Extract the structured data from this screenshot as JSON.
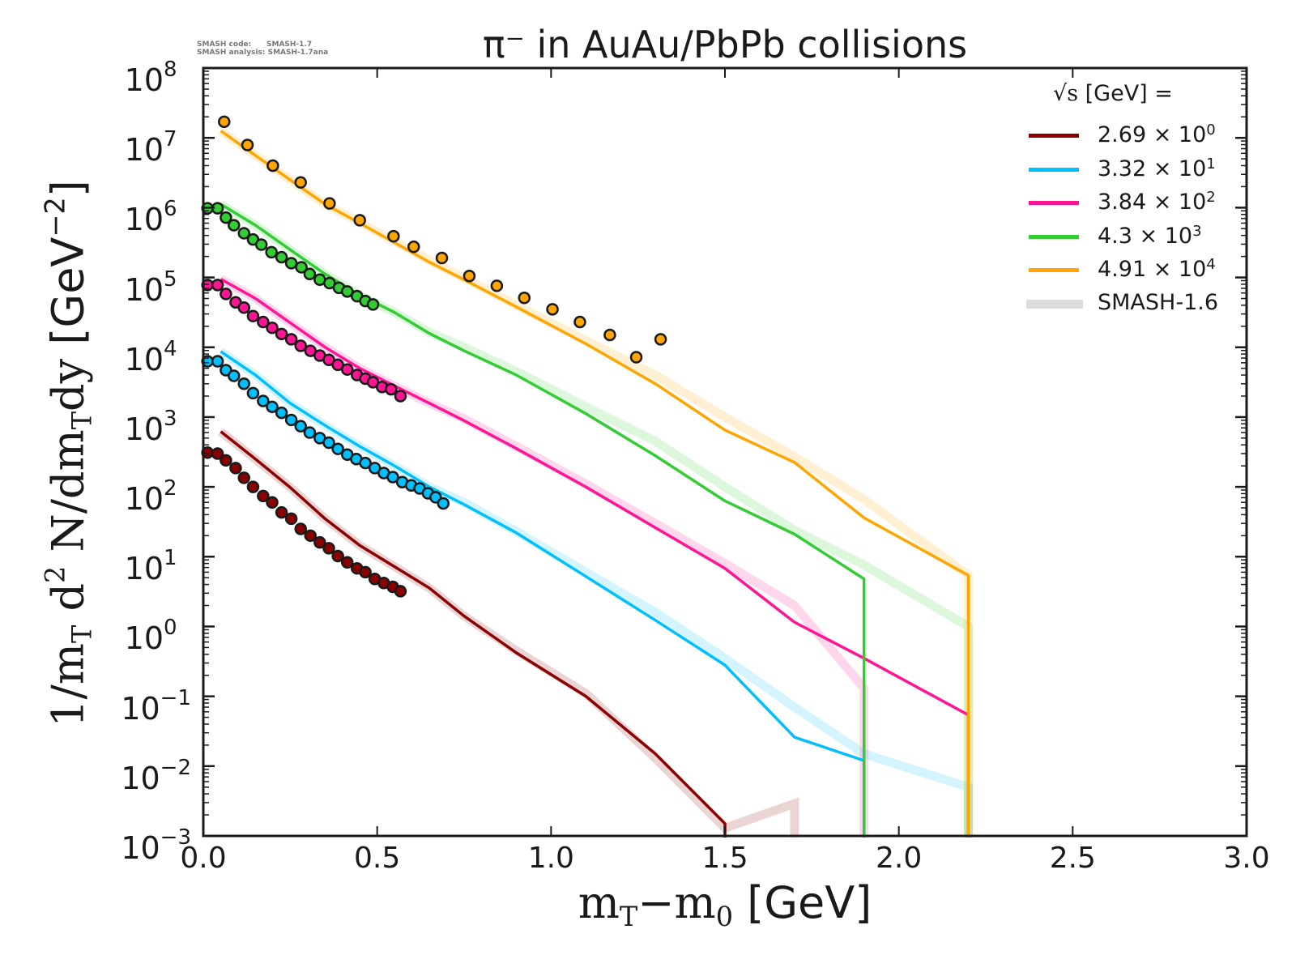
{
  "watermark": {
    "line1": "SMASH code:      SMASH-1.7",
    "line2": "SMASH analysis: SMASH-1.7ana"
  },
  "chart_data": {
    "type": "line",
    "title": "π⁻ in AuAu/PbPb collisions",
    "xlabel": {
      "m": "m",
      "t": "T",
      "minus": "−m",
      "zero": "0",
      "unit": " [GeV]"
    },
    "ylabel": {
      "pre": "1/m",
      "t": "T",
      "d": " d",
      "two": "2",
      "mid": " N/dm",
      "t2": "T",
      "dy": "dy",
      "unit": " [GeV",
      "exp": "−2",
      "close": "]"
    },
    "xlim": [
      0.0,
      3.0
    ],
    "ylim": [
      0.001,
      100000000
    ],
    "yscale": "log",
    "grid": false,
    "legend_position": "top-right",
    "x_tick_labels": [
      "0.0",
      "0.5",
      "1.0",
      "1.5",
      "2.0",
      "2.5",
      "3.0"
    ],
    "y_tick_labels": [
      {
        "base": "10",
        "exp": "8"
      },
      {
        "base": "10",
        "exp": "7"
      },
      {
        "base": "10",
        "exp": "6"
      },
      {
        "base": "10",
        "exp": "5"
      },
      {
        "base": "10",
        "exp": "4"
      },
      {
        "base": "10",
        "exp": "3"
      },
      {
        "base": "10",
        "exp": "2"
      },
      {
        "base": "10",
        "exp": "1"
      },
      {
        "base": "10",
        "exp": "0"
      },
      {
        "base": "10",
        "exp": "−1"
      },
      {
        "base": "10",
        "exp": "−2"
      },
      {
        "base": "10",
        "exp": "−3"
      }
    ],
    "legend": {
      "header_sqrt": "√s",
      "header_rest": " [GeV] =",
      "reference_label": "SMASH-1.6",
      "reference_color": "#dddddd"
    },
    "model_x": [
      0.05,
      0.15,
      0.25,
      0.35,
      0.45,
      0.55,
      0.65,
      0.75,
      0.9,
      1.1,
      1.3,
      1.5,
      1.7,
      1.9,
      2.2
    ],
    "series": [
      {
        "name_mantissa": "2.69",
        "name_exp": "0",
        "color": "#8b0000",
        "model": [
          620,
          250,
          98,
          35,
          14.5,
          7.2,
          3.55,
          1.41,
          0.42,
          0.1,
          0.015,
          0.0015
        ],
        "smash_1_6": [
          620,
          250,
          98,
          35,
          14.5,
          7.2,
          3.55,
          1.41,
          0.45,
          0.11,
          0.013,
          0.0013,
          0.0029
        ],
        "data_x": [
          0.012,
          0.041,
          0.065,
          0.093,
          0.117,
          0.143,
          0.172,
          0.198,
          0.225,
          0.253,
          0.28,
          0.308,
          0.335,
          0.361,
          0.387,
          0.414,
          0.442,
          0.466,
          0.493,
          0.519,
          0.545,
          0.567
        ],
        "data_y": [
          310,
          300,
          240,
          186,
          135,
          100,
          74,
          60,
          43,
          35,
          25,
          20,
          16,
          13.2,
          10.2,
          8.3,
          6.8,
          6.0,
          4.8,
          4.2,
          3.7,
          3.2
        ]
      },
      {
        "name_mantissa": "3.32",
        "name_exp": "1",
        "color": "#00bfff",
        "model": [
          8700,
          4000,
          1580,
          760,
          380,
          200,
          100,
          56,
          22,
          5.2,
          1.23,
          0.28,
          0.026,
          0.012
        ],
        "smash_1_6": [
          8700,
          4000,
          1580,
          760,
          380,
          200,
          100,
          60,
          23,
          6.0,
          1.6,
          0.35,
          0.07,
          0.015,
          0.005
        ],
        "data_x": [
          0.012,
          0.041,
          0.065,
          0.088,
          0.117,
          0.143,
          0.172,
          0.198,
          0.225,
          0.253,
          0.28,
          0.306,
          0.335,
          0.361,
          0.387,
          0.414,
          0.44,
          0.466,
          0.493,
          0.519,
          0.545,
          0.572,
          0.598,
          0.622,
          0.646,
          0.668,
          0.69
        ],
        "data_y": [
          6300,
          6300,
          4700,
          3900,
          3000,
          2200,
          1700,
          1400,
          1150,
          910,
          740,
          600,
          500,
          430,
          350,
          290,
          250,
          220,
          186,
          158,
          138,
          117,
          105,
          95,
          81,
          71,
          58
        ]
      },
      {
        "name_mantissa": "3.84",
        "name_exp": "2",
        "color": "#ff1493",
        "model": [
          95000,
          50000,
          22400,
          10000,
          5000,
          2800,
          1580,
          890,
          355,
          100,
          26,
          6.8,
          1.15,
          0.35,
          0.054
        ],
        "smash_1_6": [
          95000,
          50000,
          22400,
          10000,
          5000,
          2800,
          1580,
          950,
          380,
          110,
          30,
          8.0,
          2.0,
          0.13
        ],
        "data_x": [
          0.012,
          0.041,
          0.065,
          0.093,
          0.117,
          0.143,
          0.172,
          0.198,
          0.225,
          0.253,
          0.28,
          0.308,
          0.335,
          0.361,
          0.387,
          0.414,
          0.442,
          0.466,
          0.488,
          0.514,
          0.54,
          0.567
        ],
        "data_y": [
          78000,
          78000,
          58000,
          44000,
          37000,
          28000,
          23000,
          19000,
          15500,
          13000,
          10500,
          8900,
          7600,
          6600,
          5600,
          4800,
          4000,
          3550,
          3160,
          2700,
          2500,
          2000
        ]
      },
      {
        "name_mantissa": "4.3",
        "name_exp": "3",
        "color": "#32cd32",
        "model": [
          1120000,
          560000,
          250000,
          112000,
          56000,
          31600,
          15800,
          8900,
          4000,
          1120,
          280,
          63,
          21,
          4.8
        ],
        "smash_1_6": [
          1120000,
          560000,
          250000,
          112000,
          56000,
          31600,
          16500,
          10000,
          4500,
          1400,
          450,
          100,
          24,
          7.6,
          1.0
        ],
        "data_x": [
          0.012,
          0.041,
          0.065,
          0.088,
          0.117,
          0.143,
          0.167,
          0.196,
          0.225,
          0.253,
          0.282,
          0.306,
          0.335,
          0.363,
          0.39,
          0.414,
          0.442,
          0.466,
          0.488
        ],
        "data_y": [
          980000,
          980000,
          720000,
          560000,
          430000,
          350000,
          295000,
          230000,
          195000,
          160000,
          140000,
          112000,
          93000,
          83000,
          71000,
          63000,
          54000,
          46000,
          41000
        ]
      },
      {
        "name_mantissa": "4.91",
        "name_exp": "4",
        "color": "#ffa500",
        "model": [
          12600000,
          5600000,
          2500000,
          1120000,
          600000,
          316000,
          166000,
          93000,
          38000,
          11200,
          3000,
          650,
          224,
          36,
          5.4
        ],
        "smash_1_6": [
          12600000,
          5600000,
          2500000,
          1120000,
          620000,
          330000,
          175000,
          98000,
          40000,
          12500,
          4000,
          1000,
          270,
          66,
          5.4
        ],
        "data_x": [
          0.06,
          0.127,
          0.2,
          0.28,
          0.363,
          0.45,
          0.547,
          0.605,
          0.686,
          0.765,
          0.844,
          0.923,
          1.004,
          1.083,
          1.169,
          1.245,
          1.315
        ],
        "data_y": [
          17000000,
          7900000,
          4000000,
          2300000,
          1150000,
          660000,
          390000,
          275000,
          190000,
          105000,
          76000,
          51000,
          35000,
          23000,
          15000,
          7200,
          13000
        ]
      }
    ]
  }
}
